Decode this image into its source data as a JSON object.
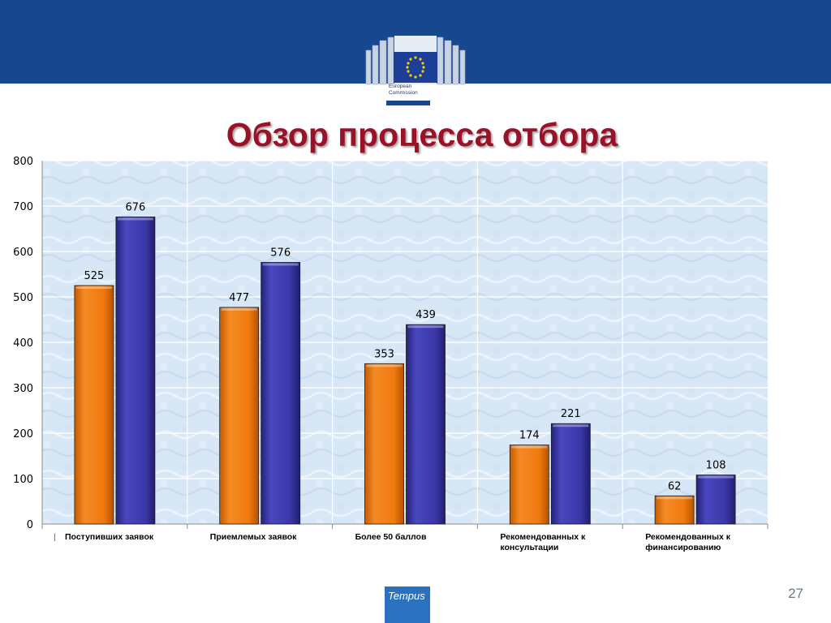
{
  "header": {
    "logo_text_line1": "European",
    "logo_text_line2": "Commission"
  },
  "title": "Обзор процесса отбора",
  "page_number": "27",
  "footer_logo": "Tempus",
  "colors": {
    "header_band": "#17478f",
    "title": "#9a1128",
    "series_1": "#f07a0e",
    "series_2": "#3a37a8",
    "plot_background": "#dce9f6"
  },
  "chart_data": {
    "type": "bar",
    "categories": [
      [
        "Поступивших заявок"
      ],
      [
        "Приемлемых заявок"
      ],
      [
        "Более 50 баллов"
      ],
      [
        "Рекомендованных к",
        "консультации"
      ],
      [
        "Рекомендованных к",
        "финансированию"
      ]
    ],
    "series": [
      {
        "values": [
          525,
          477,
          353,
          174,
          62
        ],
        "color": "#f07a0e"
      },
      {
        "values": [
          676,
          576,
          439,
          221,
          108
        ],
        "color": "#3a37a8"
      }
    ],
    "ylim": [
      0,
      800
    ],
    "yticks": [
      0,
      100,
      200,
      300,
      400,
      500,
      600,
      700,
      800
    ],
    "data_labels": true,
    "grid": true,
    "legend": "none",
    "category_marker": "|"
  }
}
